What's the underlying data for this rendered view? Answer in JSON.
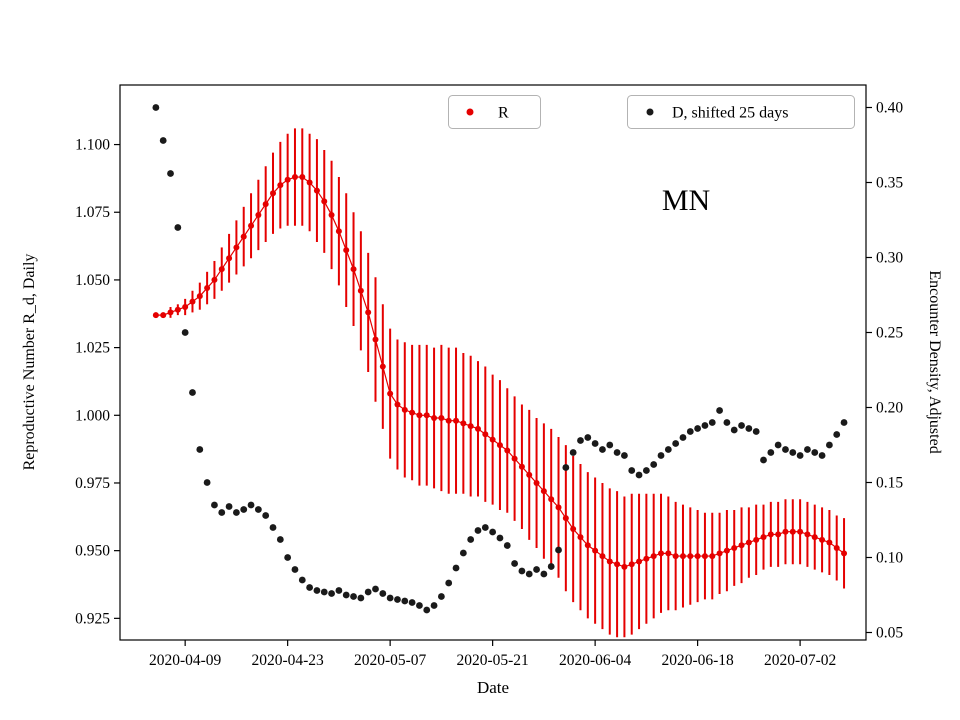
{
  "figure": {
    "annotation": "MN",
    "xlabel": "Date",
    "ylabel_left": "Reproductive Number R_d, Daily",
    "ylabel_right": "Encounter Density, Adjusted"
  },
  "legends": [
    {
      "label": "R",
      "marker": "red-dot"
    },
    {
      "label": "D, shifted 25 days",
      "marker": "black-dot"
    }
  ],
  "colors": {
    "r_series": "#e50000",
    "d_series": "#1a1a1a",
    "spine": "#000000",
    "legend_border": "#b3b3b3"
  },
  "chart_data": {
    "type": "scatter",
    "x_start_date": "2020-04-05",
    "x_interval_days": 1,
    "xlim": [
      -4.9,
      97
    ],
    "ylim_left": [
      0.917,
      1.122
    ],
    "ylim_right": [
      0.045,
      0.415
    ],
    "x_ticks": [
      {
        "i": 4,
        "label": "2020-04-09"
      },
      {
        "i": 18,
        "label": "2020-04-23"
      },
      {
        "i": 32,
        "label": "2020-05-07"
      },
      {
        "i": 46,
        "label": "2020-05-21"
      },
      {
        "i": 60,
        "label": "2020-06-04"
      },
      {
        "i": 74,
        "label": "2020-06-18"
      },
      {
        "i": 88,
        "label": "2020-07-02"
      }
    ],
    "left_ticks": [
      0.925,
      0.95,
      0.975,
      1.0,
      1.025,
      1.05,
      1.075,
      1.1
    ],
    "right_ticks": [
      0.05,
      0.1,
      0.15,
      0.2,
      0.25,
      0.3,
      0.35,
      0.4
    ],
    "series": [
      {
        "name": "R",
        "axis": "left",
        "marker": "circle",
        "color": "#e50000",
        "values": [
          1.037,
          1.037,
          1.038,
          1.039,
          1.04,
          1.042,
          1.044,
          1.047,
          1.05,
          1.054,
          1.058,
          1.062,
          1.066,
          1.07,
          1.074,
          1.078,
          1.082,
          1.085,
          1.087,
          1.088,
          1.088,
          1.086,
          1.083,
          1.079,
          1.074,
          1.068,
          1.061,
          1.054,
          1.046,
          1.038,
          1.028,
          1.018,
          1.008,
          1.004,
          1.002,
          1.001,
          1.0,
          1.0,
          0.999,
          0.999,
          0.998,
          0.998,
          0.997,
          0.996,
          0.995,
          0.993,
          0.991,
          0.989,
          0.987,
          0.984,
          0.981,
          0.978,
          0.975,
          0.972,
          0.969,
          0.966,
          0.962,
          0.958,
          0.955,
          0.952,
          0.95,
          0.948,
          0.946,
          0.945,
          0.944,
          0.945,
          0.946,
          0.947,
          0.948,
          0.949,
          0.949,
          0.948,
          0.948,
          0.948,
          0.948,
          0.948,
          0.948,
          0.949,
          0.95,
          0.951,
          0.952,
          0.953,
          0.954,
          0.955,
          0.956,
          0.956,
          0.957,
          0.957,
          0.957,
          0.956,
          0.955,
          0.954,
          0.953,
          0.951,
          0.949
        ],
        "errors": [
          0.001,
          0.001,
          0.002,
          0.002,
          0.003,
          0.004,
          0.005,
          0.006,
          0.007,
          0.008,
          0.009,
          0.01,
          0.011,
          0.012,
          0.013,
          0.014,
          0.015,
          0.016,
          0.017,
          0.018,
          0.018,
          0.018,
          0.019,
          0.019,
          0.02,
          0.02,
          0.021,
          0.021,
          0.022,
          0.022,
          0.023,
          0.023,
          0.024,
          0.024,
          0.025,
          0.025,
          0.026,
          0.026,
          0.026,
          0.027,
          0.027,
          0.027,
          0.026,
          0.026,
          0.025,
          0.025,
          0.024,
          0.024,
          0.023,
          0.023,
          0.023,
          0.024,
          0.024,
          0.025,
          0.026,
          0.026,
          0.027,
          0.027,
          0.027,
          0.027,
          0.027,
          0.027,
          0.027,
          0.027,
          0.026,
          0.026,
          0.025,
          0.024,
          0.023,
          0.022,
          0.021,
          0.02,
          0.019,
          0.018,
          0.017,
          0.016,
          0.016,
          0.015,
          0.015,
          0.014,
          0.014,
          0.013,
          0.013,
          0.012,
          0.012,
          0.012,
          0.012,
          0.012,
          0.012,
          0.012,
          0.012,
          0.012,
          0.012,
          0.012,
          0.013
        ]
      },
      {
        "name": "D, shifted 25 days",
        "axis": "right",
        "marker": "circle",
        "color": "#1a1a1a",
        "values": [
          0.4,
          0.378,
          0.356,
          0.32,
          0.25,
          0.21,
          0.172,
          0.15,
          0.135,
          0.13,
          0.134,
          0.13,
          0.132,
          0.135,
          0.132,
          0.128,
          0.12,
          0.112,
          0.1,
          0.092,
          0.085,
          0.08,
          0.078,
          0.077,
          0.076,
          0.078,
          0.075,
          0.074,
          0.073,
          0.077,
          0.079,
          0.076,
          0.073,
          0.072,
          0.071,
          0.07,
          0.068,
          0.065,
          0.068,
          0.074,
          0.083,
          0.093,
          0.103,
          0.112,
          0.118,
          0.12,
          0.117,
          0.113,
          0.108,
          0.096,
          0.091,
          0.089,
          0.092,
          0.089,
          0.094,
          0.105,
          0.16,
          0.17,
          0.178,
          0.18,
          0.176,
          0.172,
          0.175,
          0.17,
          0.168,
          0.158,
          0.155,
          0.158,
          0.162,
          0.168,
          0.172,
          0.176,
          0.18,
          0.184,
          0.186,
          0.188,
          0.19,
          0.198,
          0.19,
          0.185,
          0.188,
          0.186,
          0.184,
          0.165,
          0.17,
          0.175,
          0.172,
          0.17,
          0.168,
          0.172,
          0.17,
          0.168,
          0.175,
          0.182,
          0.19
        ]
      }
    ]
  }
}
